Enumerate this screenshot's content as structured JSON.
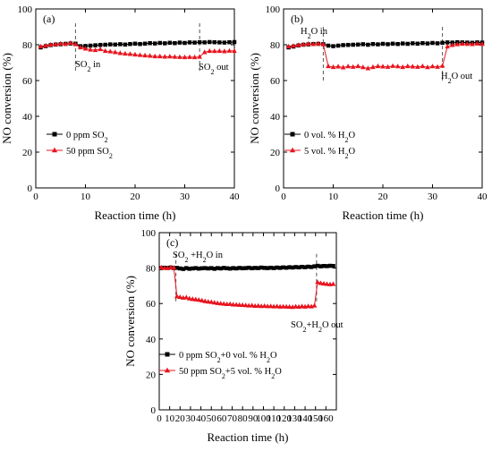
{
  "chart_data": [
    {
      "type": "line",
      "panel_label": "(a)",
      "xlabel": "Reaction time (h)",
      "ylabel": "NO conversion (%)",
      "xlim": [
        0,
        40
      ],
      "ylim": [
        0,
        100
      ],
      "xticks": [
        0,
        10,
        20,
        30,
        40
      ],
      "yticks": [
        0,
        20,
        40,
        60,
        80,
        100
      ],
      "grid": false,
      "legend_position": "lower-left",
      "series": [
        {
          "name": "0 ppm SO2",
          "color": "#000000",
          "marker": "square",
          "x": [
            1,
            2,
            3,
            4,
            5,
            6,
            7,
            8,
            9,
            10,
            11,
            12,
            13,
            14,
            15,
            16,
            17,
            18,
            19,
            20,
            21,
            22,
            23,
            24,
            25,
            26,
            27,
            28,
            29,
            30,
            31,
            32,
            33,
            34,
            35,
            36,
            37,
            38,
            39,
            40
          ],
          "y": [
            78.5,
            79.2,
            79.8,
            80.1,
            80.3,
            80.5,
            80.7,
            80.6,
            79.2,
            79.3,
            79.5,
            79.7,
            79.9,
            80,
            80.2,
            80.1,
            80.3,
            80.1,
            80.4,
            80.6,
            80.4,
            80.6,
            80.9,
            80.7,
            81,
            80.8,
            81.1,
            80.9,
            81.2,
            81,
            81.3,
            81.2,
            81.4,
            81.3,
            81.5,
            81.4,
            81.3,
            81.2,
            81.4,
            81.5
          ]
        },
        {
          "name": "50 ppm SO2",
          "color": "#e8141e",
          "marker": "triangle",
          "x": [
            1,
            2,
            3,
            4,
            5,
            6,
            7,
            8,
            9,
            10,
            11,
            12,
            13,
            14,
            15,
            16,
            17,
            18,
            19,
            20,
            21,
            22,
            23,
            24,
            25,
            26,
            27,
            28,
            29,
            30,
            31,
            32,
            33,
            34,
            35,
            36,
            37,
            38,
            39,
            40
          ],
          "y": [
            79,
            79.5,
            80,
            80.2,
            80.6,
            80.4,
            81,
            80.2,
            78.5,
            77.8,
            77.2,
            77,
            77.5,
            76.5,
            76.2,
            75.8,
            75.3,
            75,
            74.8,
            74.5,
            74.2,
            74,
            73.8,
            73.5,
            73.5,
            73.3,
            73.4,
            73.2,
            73.1,
            73,
            73.1,
            73,
            73.2,
            75.8,
            76.5,
            76.4,
            76.5,
            76.3,
            76.6,
            76.5
          ]
        }
      ],
      "annotations": [
        {
          "id": "so2-in",
          "text": "SO",
          "sub": "2",
          "text_after": " in",
          "x": 8,
          "line_x": 8
        },
        {
          "id": "so2-out",
          "text": "SO",
          "sub": "2",
          "text_after": " out",
          "x": 33,
          "line_x": 33
        }
      ]
    },
    {
      "type": "line",
      "panel_label": "(b)",
      "xlabel": "Reaction time (h)",
      "ylabel": "NO conversion (%)",
      "xlim": [
        0,
        40
      ],
      "ylim": [
        0,
        100
      ],
      "xticks": [
        0,
        10,
        20,
        30,
        40
      ],
      "yticks": [
        0,
        20,
        40,
        60,
        80,
        100
      ],
      "grid": false,
      "legend_position": "lower-left",
      "series": [
        {
          "name": "0 vol. % H2O",
          "color": "#000000",
          "marker": "square",
          "x": [
            1,
            2,
            3,
            4,
            5,
            6,
            7,
            8,
            9,
            10,
            11,
            12,
            13,
            14,
            15,
            16,
            17,
            18,
            19,
            20,
            21,
            22,
            23,
            24,
            25,
            26,
            27,
            28,
            29,
            30,
            31,
            32,
            33,
            34,
            35,
            36,
            37,
            38,
            39,
            40
          ],
          "y": [
            78.5,
            79,
            79.6,
            80,
            80.2,
            80.4,
            80.5,
            80.3,
            79.5,
            79.2,
            79.5,
            79.8,
            79.9,
            80,
            80.1,
            80.3,
            80,
            80.4,
            80.2,
            80.5,
            80.3,
            80.6,
            80.4,
            80.7,
            80.5,
            80.8,
            80.6,
            80.9,
            80.7,
            81,
            80.8,
            81.1,
            81.3,
            81.2,
            81.4,
            81.3,
            81.2,
            81.1,
            81.3,
            81.2
          ]
        },
        {
          "name": "5 vol. % H2O",
          "color": "#e8141e",
          "marker": "triangle",
          "x": [
            1,
            2,
            3,
            4,
            5,
            6,
            7,
            8,
            9,
            10,
            11,
            12,
            13,
            14,
            15,
            16,
            17,
            18,
            19,
            20,
            21,
            22,
            23,
            24,
            25,
            26,
            27,
            28,
            29,
            30,
            31,
            32,
            33,
            34,
            35,
            36,
            37,
            38,
            39,
            40
          ],
          "y": [
            79,
            79.4,
            79.8,
            80.1,
            80.5,
            80.3,
            80.6,
            80.2,
            68,
            67.5,
            67.8,
            67.3,
            67.9,
            67.6,
            68,
            67.4,
            66.8,
            67.5,
            68,
            67.8,
            67.6,
            68.1,
            67.9,
            67.5,
            68,
            67.8,
            67.6,
            68,
            67.4,
            67.9,
            67.6,
            68.2,
            79,
            79.8,
            80.2,
            80.5,
            80.4,
            80.3,
            80.6,
            80.4
          ]
        }
      ],
      "annotations": [
        {
          "id": "h2o-in",
          "text": "H",
          "sub": "2",
          "text_after": "O in",
          "x": 8,
          "line_x": 8
        },
        {
          "id": "h2o-out",
          "text": "H",
          "sub": "2",
          "text_after": "O out",
          "x": 32,
          "line_x": 32
        }
      ]
    },
    {
      "type": "line",
      "panel_label": "(c)",
      "xlabel": "Reaction time (h)",
      "ylabel": "NO conversion (%)",
      "xlim": [
        0,
        170
      ],
      "ylim": [
        0,
        100
      ],
      "xticks": [
        0,
        10,
        20,
        30,
        40,
        50,
        60,
        70,
        80,
        90,
        100,
        110,
        120,
        130,
        140,
        150,
        160
      ],
      "yticks": [
        0,
        20,
        40,
        60,
        80,
        100
      ],
      "grid": false,
      "legend_position": "lower-left",
      "series": [
        {
          "name": "0 ppm SO2+0 vol. % H2O",
          "color": "#000000",
          "marker": "square",
          "x": [
            2,
            5,
            8,
            11,
            14,
            17,
            20,
            23,
            26,
            29,
            32,
            35,
            38,
            41,
            44,
            47,
            50,
            53,
            56,
            59,
            62,
            65,
            68,
            71,
            74,
            77,
            80,
            83,
            86,
            89,
            92,
            95,
            98,
            101,
            104,
            107,
            110,
            113,
            116,
            119,
            122,
            125,
            128,
            131,
            134,
            137,
            140,
            143,
            146,
            149,
            152,
            155,
            158,
            161,
            164,
            167
          ],
          "y": [
            80,
            80.2,
            80.1,
            80.3,
            80,
            80.1,
            79.8,
            79.5,
            80,
            79.6,
            79.8,
            80,
            79.7,
            79.9,
            80,
            79.8,
            80,
            79.6,
            80,
            79.8,
            80.1,
            79.9,
            79.7,
            80,
            79.8,
            80.1,
            79.9,
            80,
            80.2,
            79.9,
            80.1,
            80,
            80.3,
            80.1,
            80,
            80.2,
            80,
            80.3,
            80.1,
            80.4,
            80.2,
            80.5,
            80.3,
            80.6,
            80.4,
            80.7,
            80.5,
            80.8,
            80.6,
            81,
            81.3,
            81,
            81.2,
            81.1,
            81.3,
            81.2
          ]
        },
        {
          "name": "50 ppm SO2+5 vol. % H2O",
          "color": "#e8141e",
          "marker": "triangle",
          "x": [
            2,
            5,
            8,
            11,
            14,
            17,
            20,
            23,
            26,
            29,
            32,
            35,
            38,
            41,
            44,
            47,
            50,
            53,
            56,
            59,
            62,
            65,
            68,
            71,
            74,
            77,
            80,
            83,
            86,
            89,
            92,
            95,
            98,
            101,
            104,
            107,
            110,
            113,
            116,
            119,
            122,
            125,
            128,
            131,
            134,
            137,
            140,
            143,
            146,
            149,
            152,
            155,
            158,
            161,
            164,
            167
          ],
          "y": [
            80.3,
            80,
            79.9,
            80.4,
            80.2,
            64,
            63.6,
            63.2,
            63.4,
            62.8,
            62.5,
            62.3,
            62,
            61.7,
            61.3,
            61,
            60.8,
            60.5,
            60.2,
            60,
            59.8,
            59.6,
            59.7,
            59.4,
            59.3,
            59.2,
            59.1,
            59,
            58.8,
            58.9,
            58.6,
            58.7,
            58.5,
            58.6,
            58.4,
            58.5,
            58.3,
            58.4,
            58.2,
            58.3,
            58.2,
            58.1,
            58,
            58.3,
            58.1,
            58.4,
            58.2,
            58.5,
            58.3,
            58.8,
            72,
            71.5,
            71.2,
            71,
            70.8,
            71
          ]
        }
      ],
      "annotations": [
        {
          "id": "so2h2o-in",
          "text": "SO",
          "sub": "2",
          "text_after": " +H",
          "sub2": "2",
          "text_after2": "O in",
          "x": 16,
          "line_x": 16
        },
        {
          "id": "so2h2o-out",
          "text": "SO",
          "sub": "2",
          "text_after": "+H",
          "sub2": "2",
          "text_after2": "O out",
          "x": 151,
          "line_x": 151
        }
      ]
    }
  ]
}
